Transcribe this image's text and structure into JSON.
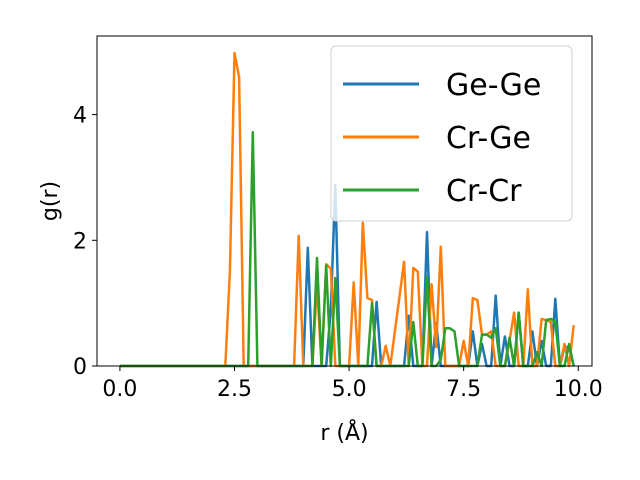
{
  "chart_data": {
    "type": "line",
    "xlabel": "r (Å)",
    "ylabel": "g(r)",
    "xlim": [
      -0.5,
      10.3
    ],
    "ylim": [
      0,
      5.25
    ],
    "xticks": [
      0.0,
      2.5,
      5.0,
      7.5,
      10.0
    ],
    "xtick_labels": [
      "0.0",
      "2.5",
      "5.0",
      "7.5",
      "10.0"
    ],
    "yticks": [
      0,
      2,
      4
    ],
    "ytick_labels": [
      "0",
      "2",
      "4"
    ],
    "grid": false,
    "legend_position": "upper-right",
    "series": [
      {
        "name": "Ge-Ge",
        "color": "#1f77b4",
        "points": [
          [
            0.0,
            0
          ],
          [
            3.9,
            0
          ],
          [
            4.0,
            0
          ],
          [
            4.1,
            1.88
          ],
          [
            4.2,
            0
          ],
          [
            4.5,
            0
          ],
          [
            4.6,
            0.9
          ],
          [
            4.7,
            2.88
          ],
          [
            4.8,
            0
          ],
          [
            5.3,
            0
          ],
          [
            5.5,
            0
          ],
          [
            5.6,
            1.02
          ],
          [
            5.7,
            0
          ],
          [
            6.2,
            0
          ],
          [
            6.3,
            0.8
          ],
          [
            6.4,
            0
          ],
          [
            6.6,
            0
          ],
          [
            6.7,
            2.13
          ],
          [
            6.8,
            0
          ],
          [
            6.9,
            0.68
          ],
          [
            7.0,
            0
          ],
          [
            7.6,
            0
          ],
          [
            7.7,
            0.55
          ],
          [
            7.8,
            0
          ],
          [
            7.9,
            0.35
          ],
          [
            8.0,
            0
          ],
          [
            8.1,
            0
          ],
          [
            8.2,
            1.12
          ],
          [
            8.3,
            0
          ],
          [
            8.4,
            0.47
          ],
          [
            8.5,
            0
          ],
          [
            8.6,
            0
          ],
          [
            8.7,
            0.85
          ],
          [
            8.8,
            0
          ],
          [
            8.9,
            0
          ],
          [
            9.0,
            0.55
          ],
          [
            9.1,
            0
          ],
          [
            9.2,
            0.4
          ],
          [
            9.3,
            0
          ],
          [
            9.4,
            0
          ],
          [
            9.5,
            1.07
          ],
          [
            9.6,
            0
          ],
          [
            9.7,
            0.3
          ],
          [
            9.8,
            0.3
          ],
          [
            9.9,
            0
          ]
        ]
      },
      {
        "name": "Cr-Ge",
        "color": "#ff7f0e",
        "points": [
          [
            0.0,
            0
          ],
          [
            2.3,
            0
          ],
          [
            2.4,
            1.5
          ],
          [
            2.5,
            4.98
          ],
          [
            2.6,
            4.6
          ],
          [
            2.7,
            0
          ],
          [
            3.8,
            0
          ],
          [
            3.9,
            2.07
          ],
          [
            4.0,
            0
          ],
          [
            4.2,
            0
          ],
          [
            4.3,
            1.3
          ],
          [
            4.4,
            0
          ],
          [
            4.5,
            1.62
          ],
          [
            4.6,
            1.55
          ],
          [
            4.7,
            0
          ],
          [
            5.0,
            0
          ],
          [
            5.1,
            1.33
          ],
          [
            5.2,
            0
          ],
          [
            5.3,
            2.28
          ],
          [
            5.4,
            1.08
          ],
          [
            5.5,
            1.05
          ],
          [
            5.6,
            0
          ],
          [
            5.7,
            0
          ],
          [
            5.8,
            0.32
          ],
          [
            5.9,
            0
          ],
          [
            6.2,
            1.66
          ],
          [
            6.3,
            0
          ],
          [
            6.4,
            1.56
          ],
          [
            6.5,
            1.5
          ],
          [
            6.6,
            0
          ],
          [
            6.7,
            0
          ],
          [
            6.8,
            1.3
          ],
          [
            6.9,
            0.3
          ],
          [
            7.0,
            1.9
          ],
          [
            7.1,
            0
          ],
          [
            7.4,
            0
          ],
          [
            7.5,
            0.4
          ],
          [
            7.6,
            0
          ],
          [
            7.7,
            1.08
          ],
          [
            7.8,
            1.05
          ],
          [
            7.9,
            0.5
          ],
          [
            8.0,
            0.5
          ],
          [
            8.1,
            0.55
          ],
          [
            8.2,
            0
          ],
          [
            8.4,
            0
          ],
          [
            8.5,
            0.4
          ],
          [
            8.6,
            0.85
          ],
          [
            8.7,
            0
          ],
          [
            8.8,
            0
          ],
          [
            8.9,
            1.22
          ],
          [
            9.0,
            0
          ],
          [
            9.1,
            0
          ],
          [
            9.2,
            0.75
          ],
          [
            9.3,
            0.73
          ],
          [
            9.4,
            0.7
          ],
          [
            9.5,
            0
          ],
          [
            9.6,
            0
          ],
          [
            9.7,
            0.35
          ],
          [
            9.8,
            0
          ],
          [
            9.9,
            0.65
          ]
        ]
      },
      {
        "name": "Cr-Cr",
        "color": "#2ca02c",
        "points": [
          [
            0.0,
            0
          ],
          [
            2.8,
            0
          ],
          [
            2.9,
            3.72
          ],
          [
            3.0,
            0
          ],
          [
            4.2,
            0
          ],
          [
            4.3,
            1.72
          ],
          [
            4.4,
            0
          ],
          [
            4.5,
            1.6
          ],
          [
            4.6,
            0
          ],
          [
            4.7,
            1.4
          ],
          [
            4.8,
            0
          ],
          [
            5.4,
            0
          ],
          [
            5.5,
            1.0
          ],
          [
            5.6,
            0
          ],
          [
            6.2,
            0
          ],
          [
            6.3,
            0
          ],
          [
            6.4,
            0.7
          ],
          [
            6.5,
            0
          ],
          [
            6.6,
            0
          ],
          [
            6.7,
            1.42
          ],
          [
            6.8,
            0
          ],
          [
            6.9,
            0
          ],
          [
            7.0,
            0.1
          ],
          [
            7.1,
            0.6
          ],
          [
            7.2,
            0.6
          ],
          [
            7.3,
            0.55
          ],
          [
            7.4,
            0
          ],
          [
            7.8,
            0
          ],
          [
            7.9,
            0.5
          ],
          [
            8.0,
            0.5
          ],
          [
            8.1,
            0.45
          ],
          [
            8.2,
            0.6
          ],
          [
            8.3,
            0
          ],
          [
            8.4,
            0
          ],
          [
            8.5,
            0.45
          ],
          [
            8.6,
            0
          ],
          [
            8.7,
            0.85
          ],
          [
            8.8,
            0
          ],
          [
            9.0,
            0
          ],
          [
            9.1,
            0.22
          ],
          [
            9.2,
            0
          ],
          [
            9.3,
            0.73
          ],
          [
            9.4,
            0.75
          ],
          [
            9.5,
            0.7
          ],
          [
            9.6,
            0
          ],
          [
            9.7,
            0
          ],
          [
            9.8,
            0.35
          ],
          [
            9.9,
            0
          ]
        ]
      }
    ]
  }
}
